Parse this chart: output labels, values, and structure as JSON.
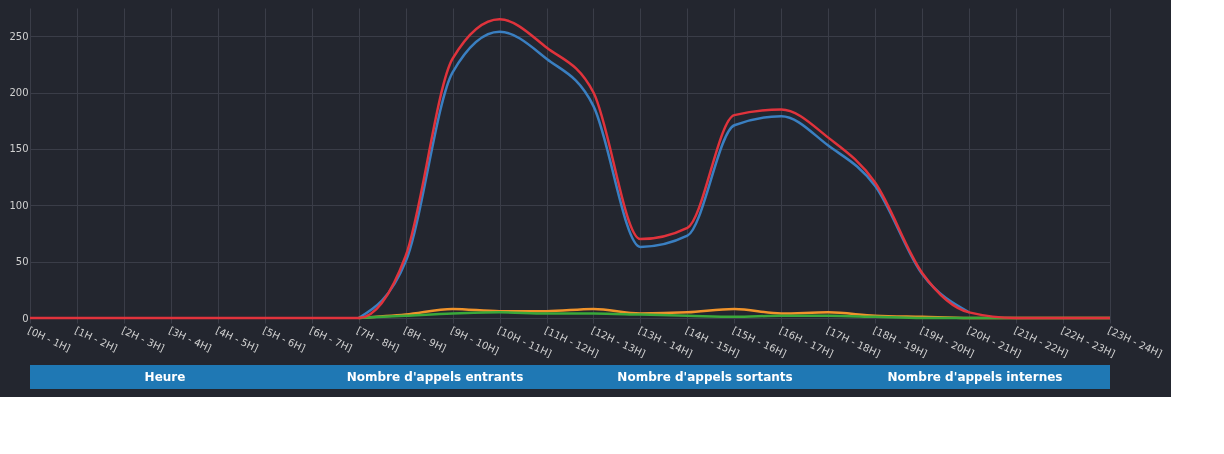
{
  "chart_data": {
    "type": "line",
    "categories": [
      "[0H - 1H]",
      "[1H - 2H]",
      "[2H - 3H]",
      "[3H - 4H]",
      "[4H - 5H]",
      "[5H - 6H]",
      "[6H - 7H]",
      "[7H - 8H]",
      "[8H - 9H]",
      "[9H - 10H]",
      "[10H - 11H]",
      "[11H - 12H]",
      "[12H - 13H]",
      "[13H - 14H]",
      "[14H - 15H]",
      "[15H - 16H]",
      "[16H - 17H]",
      "[17H - 18H]",
      "[18H - 19H]",
      "[19H - 20H]",
      "[20H - 21H]",
      "[21H - 22H]",
      "[22H - 23H]",
      "[23H - 24H]"
    ],
    "series": [
      {
        "color": "#3a7fc1",
        "values": [
          null,
          null,
          null,
          null,
          null,
          null,
          null,
          0,
          50,
          218,
          254,
          230,
          188,
          63,
          73,
          171,
          179,
          153,
          117,
          39,
          5,
          null,
          null,
          null
        ]
      },
      {
        "color": "#f0932b",
        "values": [
          null,
          null,
          null,
          null,
          null,
          null,
          null,
          0,
          3,
          8,
          6,
          6,
          8,
          4,
          5,
          8,
          4,
          5,
          2,
          1,
          0,
          0,
          0,
          0
        ]
      },
      {
        "color": "#3aa83a",
        "values": [
          null,
          null,
          null,
          null,
          null,
          null,
          null,
          0,
          2,
          4,
          5,
          4,
          4,
          3,
          2,
          1,
          2,
          2,
          1,
          0,
          0,
          0,
          0,
          0
        ]
      },
      {
        "color": "#e0333c",
        "values": [
          0,
          0,
          0,
          0,
          0,
          0,
          0,
          0,
          55,
          230,
          265,
          240,
          200,
          70,
          80,
          180,
          185,
          160,
          120,
          40,
          5,
          0,
          0,
          0
        ]
      }
    ],
    "ylim": [
      0,
      275
    ],
    "yticks": [
      0,
      50,
      100,
      150,
      200,
      250
    ],
    "grid": true,
    "marker": "none",
    "line_style": "solid",
    "annotations": [
      "Heure",
      "Nombre d'appels entrants",
      "Nombre d'appels sortants",
      "Nombre d'appels internes"
    ]
  }
}
